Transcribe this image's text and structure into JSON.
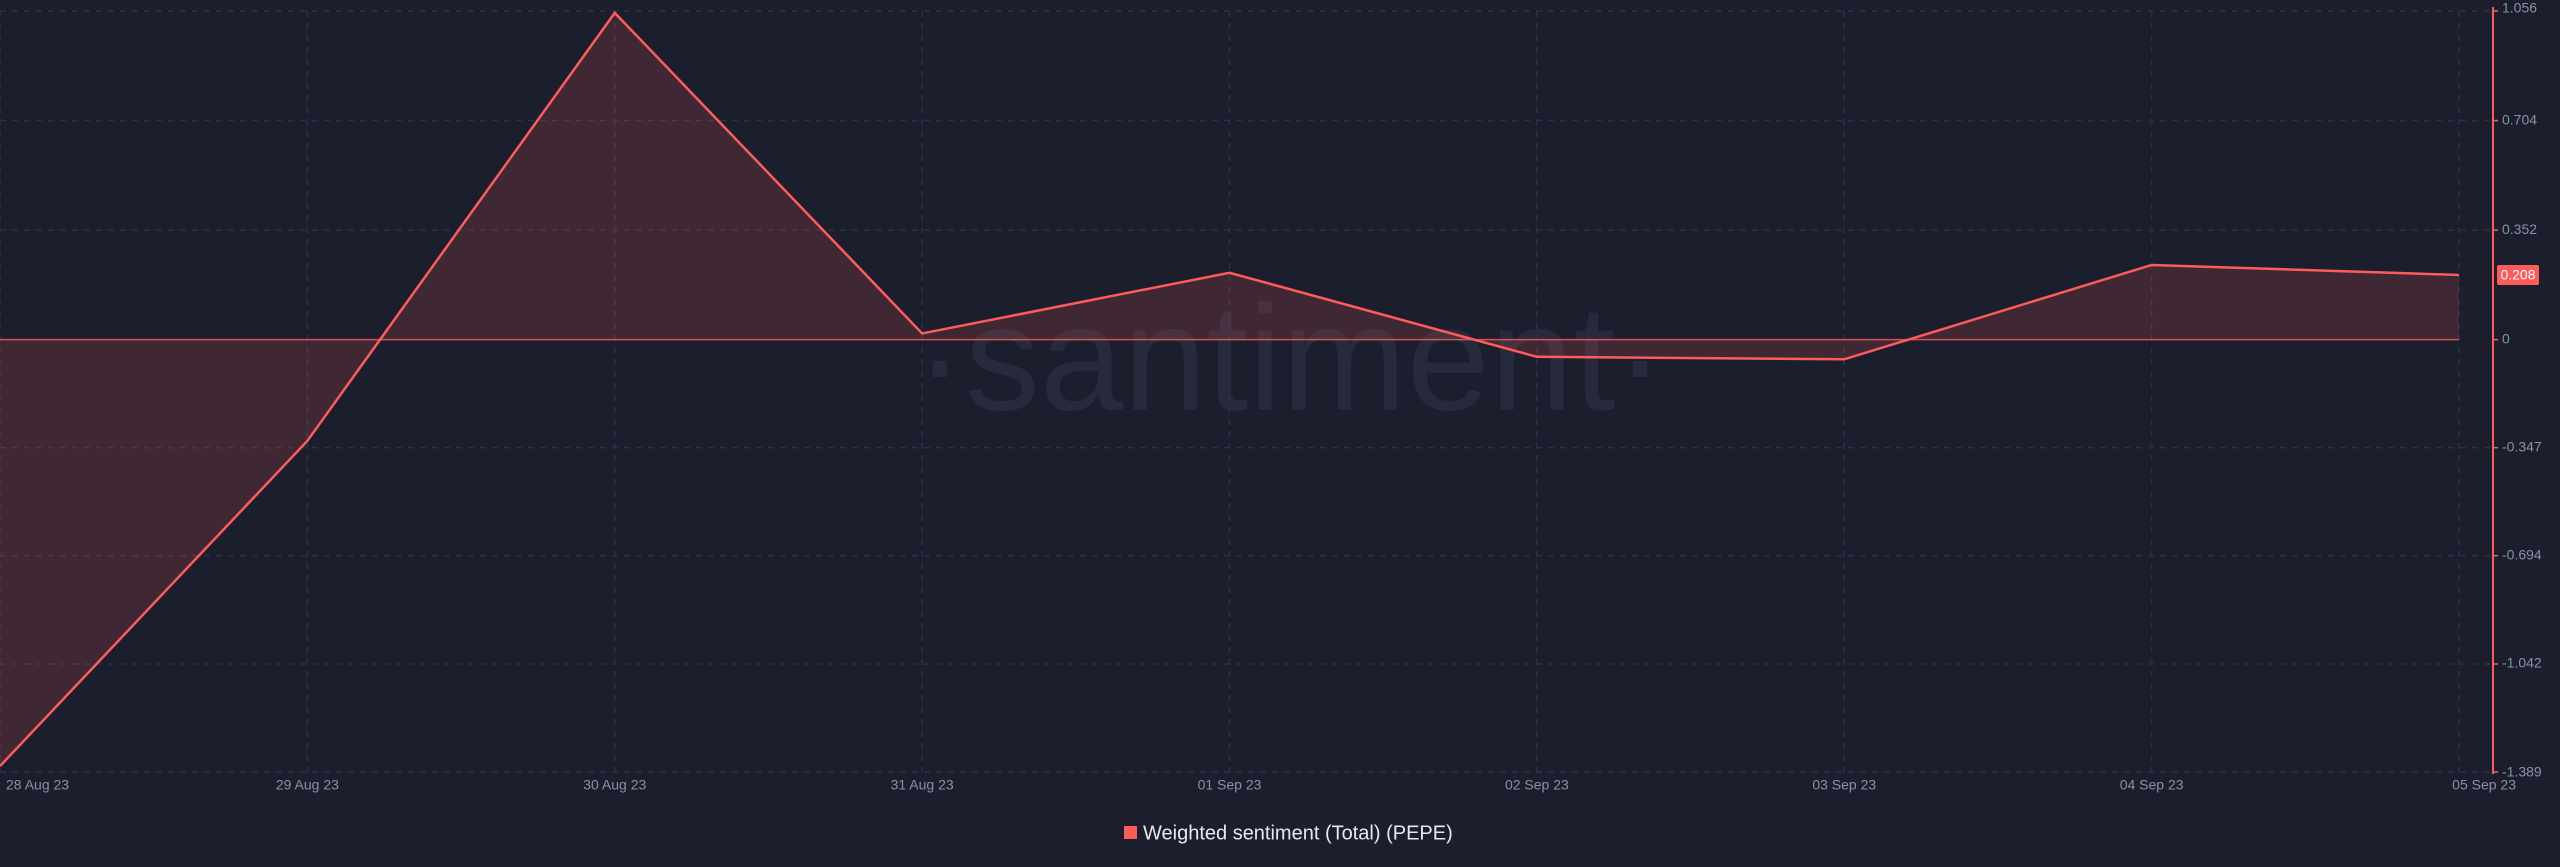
{
  "chart_data": {
    "type": "line",
    "watermark": "·santiment·",
    "categories": [
      "28 Aug 23",
      "29 Aug 23",
      "30 Aug 23",
      "31 Aug 23",
      "01 Sep 23",
      "02 Sep 23",
      "03 Sep 23",
      "04 Sep 23",
      "05 Sep 23"
    ],
    "series": [
      {
        "name": "Weighted sentiment (Total) (PEPE)",
        "color": "#ff5b5b",
        "values": [
          -1.37,
          -0.325,
          1.05,
          0.02,
          0.215,
          -0.055,
          -0.063,
          0.24,
          0.208
        ]
      }
    ],
    "ylim": [
      -1.389,
      1.056
    ],
    "yticks": [
      1.056,
      0.704,
      0.352,
      0,
      -0.347,
      -0.694,
      -1.042,
      -1.389
    ],
    "grid": true
  }
}
